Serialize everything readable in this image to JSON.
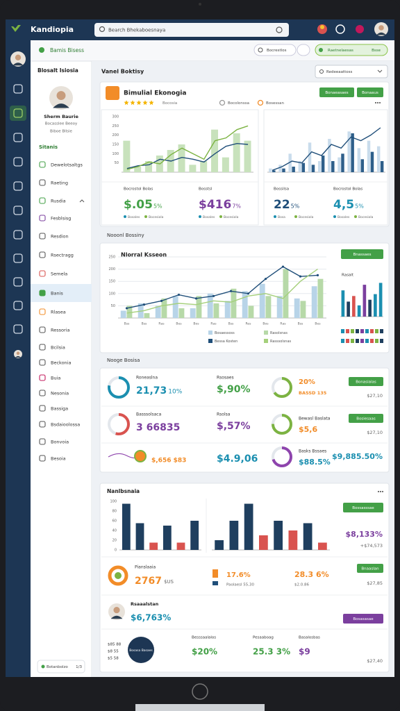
{
  "topbar": {
    "brand": "Kandiopia",
    "search": "Bearch Bhekaboesnaya"
  },
  "toolbar": {
    "tab": "Bamis Bisess",
    "filter": "Bocrestlos",
    "action": "Raetnelaesas",
    "badge": "Bsse"
  },
  "sidebar": {
    "title": "Blosalt Isiosia",
    "name": "Sherm Baurie",
    "role": "Bocasslee Beeoy",
    "team": "Biboe Bllsie",
    "section": "Sitanis",
    "items": [
      "Dewelotsaltgs",
      "Raeting",
      "Rusdia",
      "Fesblsisg",
      "Resdion",
      "Rsectragg",
      "Semela",
      "Banis",
      "Rlasea",
      "Ressoria",
      "Bcilsia",
      "Beckonia",
      "Buia",
      "Nesonia",
      "Bassiga",
      "Bsdaioolossa",
      "Bonvoia",
      "Besoia"
    ],
    "active": 7,
    "footer": "Botanbolzo",
    "footer_page": "1/3"
  },
  "overview": {
    "title": "Vanel Boktisy",
    "select": "Redeeaattoss",
    "card": {
      "title": "Bimulial Ekonogia",
      "rating": 5,
      "rating_note": "Bocosia",
      "chips": [
        "Bocolonssa",
        "Bosessan"
      ],
      "buttons": [
        "Bonaeasaes",
        "Bonaaus"
      ],
      "stats": [
        {
          "label": "Bocrostol Bolas",
          "value": "$.05",
          "change": "5%",
          "legend": [
            "Bosales",
            "Bocesiola"
          ]
        },
        {
          "label": "Bosstsl",
          "value": "$416",
          "change": "7%",
          "legend": [
            "Bosales",
            "Bocesiola"
          ]
        },
        {
          "label": "Bossilsa",
          "value": "22",
          "change": "5%",
          "legend": [
            "Bosa",
            "Bocesiola"
          ]
        },
        {
          "label": "Bocrostol Bolas",
          "value": "4,5",
          "change": "5%",
          "legend": [
            "Bosales",
            "Bocesiola"
          ]
        }
      ]
    }
  },
  "trends": {
    "title": "Nooonl Bossiny",
    "button": "Bnassaes"
  },
  "chart_data": [
    {
      "type": "combo",
      "ylim": [
        0,
        300
      ],
      "yticks": [
        50,
        100,
        150,
        200,
        250,
        300
      ],
      "series": [
        {
          "type": "bar",
          "color": "#c8e2bc",
          "values": [
            170,
            30,
            60,
            90,
            120,
            150,
            40,
            60,
            230,
            80,
            210,
            170
          ]
        },
        {
          "type": "line",
          "color": "#1f4e79",
          "values": [
            20,
            35,
            40,
            70,
            60,
            80,
            70,
            55,
            100,
            140,
            155,
            150
          ]
        },
        {
          "type": "line",
          "color": "#7cb342",
          "values": [
            15,
            30,
            55,
            45,
            95,
            130,
            100,
            70,
            170,
            185,
            230,
            250
          ]
        }
      ]
    },
    {
      "type": "combo",
      "ylim": [
        0,
        300
      ],
      "series": [
        {
          "type": "bar",
          "color": "#c9dcec",
          "values": [
            20,
            40,
            100,
            60,
            160,
            60,
            180,
            80,
            220,
            130,
            170,
            140
          ]
        },
        {
          "type": "bar",
          "color": "#2e5f8a",
          "values": [
            10,
            20,
            30,
            50,
            40,
            90,
            60,
            100,
            210,
            70,
            110,
            60
          ]
        },
        {
          "type": "line",
          "color": "#1f4e79",
          "values": [
            10,
            30,
            60,
            50,
            110,
            90,
            150,
            130,
            190,
            170,
            200,
            240
          ]
        }
      ]
    },
    {
      "type": "combo",
      "title": "Nlorral Ksseon",
      "ylim": [
        0,
        250
      ],
      "yticks": [
        50,
        100,
        150,
        200,
        250
      ],
      "grid": true,
      "categories": [
        "Bss",
        "Bss",
        "Ras",
        "Bes",
        "Bos",
        "Ras",
        "Bss",
        "Res",
        "Bos",
        "Ras",
        "Bss",
        "Bes"
      ],
      "series": [
        {
          "type": "bar",
          "name": "Bosaessoss",
          "color": "#b8d4e8",
          "values": [
            30,
            60,
            50,
            90,
            40,
            100,
            70,
            110,
            140,
            90,
            80,
            130
          ]
        },
        {
          "type": "bar",
          "name": "Rasolsnas",
          "color": "#b7d9a8",
          "values": [
            50,
            20,
            80,
            40,
            90,
            60,
            120,
            50,
            90,
            200,
            70,
            160
          ]
        },
        {
          "type": "line",
          "name": "Bessa Kosten",
          "color": "#1f4e79",
          "values": [
            40,
            55,
            70,
            95,
            80,
            90,
            110,
            100,
            160,
            210,
            170,
            175
          ]
        },
        {
          "type": "line",
          "name": "Rasssolsnas",
          "color": "#a5d07b",
          "values": [
            20,
            30,
            50,
            60,
            55,
            70,
            65,
            90,
            100,
            80,
            150,
            200
          ]
        }
      ]
    },
    {
      "type": "bar",
      "title": "Rasalt",
      "ylim": [
        0,
        100
      ],
      "values": [
        70,
        40,
        55,
        30,
        85,
        45,
        60,
        90
      ],
      "colors": [
        "#1b8fb0",
        "#1f3f5f",
        "#d9534f",
        "#1b8fb0",
        "#7b3f9e",
        "#1f3f5f",
        "#1b8fb0",
        "#1b8fb0"
      ]
    },
    {
      "type": "bar",
      "ylim": [
        0,
        100
      ],
      "yticks": [
        0,
        20,
        40,
        60,
        80,
        100
      ],
      "values": [
        95,
        55,
        15,
        50,
        15,
        60
      ],
      "colors": [
        "#1f3f5f",
        "#1f3f5f",
        "#d9534f",
        "#1f3f5f",
        "#d9534f",
        "#1f3f5f"
      ]
    },
    {
      "type": "bar",
      "ylim": [
        0,
        100
      ],
      "values": [
        20,
        60,
        95,
        30,
        60,
        40,
        55,
        15
      ],
      "colors": [
        "#1f3f5f",
        "#1f3f5f",
        "#1f3f5f",
        "#d9534f",
        "#1f3f5f",
        "#d9534f",
        "#1f3f5f",
        "#d9534f"
      ]
    }
  ],
  "kpis": {
    "title": "Nooge Bosisa",
    "rows": [
      {
        "label": "Roneaslna",
        "value": "21,73",
        "change": "10%",
        "mid_label": "Rsosaes",
        "mid_value": "$,90%",
        "right_label": "20%",
        "right_value": "BASSD 135",
        "button": "Bonasialas",
        "note": "$27,10",
        "donuts": [
          {
            "value": 78,
            "color": "#1b8fb0"
          },
          {
            "value": 65,
            "color": "#7cb342"
          }
        ]
      },
      {
        "label": "Basssolsaca",
        "value": "3 66835",
        "mid_label": "Rsolsa",
        "mid_value": "$,57%",
        "right_label": "Bewasl Baslata",
        "right_value": "$5,6",
        "button": "Bosiesaas",
        "note": "$27,10",
        "donuts": [
          {
            "value": 55,
            "color": "#d9534f"
          },
          {
            "value": 75,
            "color": "#7cb342"
          }
        ]
      },
      {
        "value": "$,656 $83",
        "mid_value": "$4.9,06",
        "right_label": "Basks Bssaes",
        "right_value": "$88.5%",
        "note": "$9,885.50%",
        "donuts": [
          {
            "value": 70,
            "color": "#8e44ad"
          }
        ]
      }
    ]
  },
  "finance": {
    "title": "Nanlbsnaia",
    "button": "Bossasssae",
    "value": "$8,133%",
    "note": "+$74,573",
    "summary": {
      "label": "Pianslaaia",
      "value": "2767",
      "unit": "$US",
      "mid_value": "17.6%",
      "mid_note": "Paolaesl 55,30",
      "right_value": "28.3 6%",
      "right_note": "$2.0.86",
      "button": "Bnaaslan",
      "note": "$27,85"
    },
    "person": {
      "name": "Rsaaalstan",
      "value": "$6,763%",
      "button": "Bosasasae"
    },
    "footer": {
      "mini": [
        "$85 88",
        "$8 55",
        "$5 58"
      ],
      "badge": "Bosasa Basaes",
      "stats": [
        {
          "label": "Besssaalalos",
          "value": "$20%"
        },
        {
          "label": "Pesaaboag",
          "value": "25.3 3%"
        },
        {
          "label": "Basalosbas",
          "value": "$9"
        }
      ],
      "note": "$27,40"
    }
  }
}
